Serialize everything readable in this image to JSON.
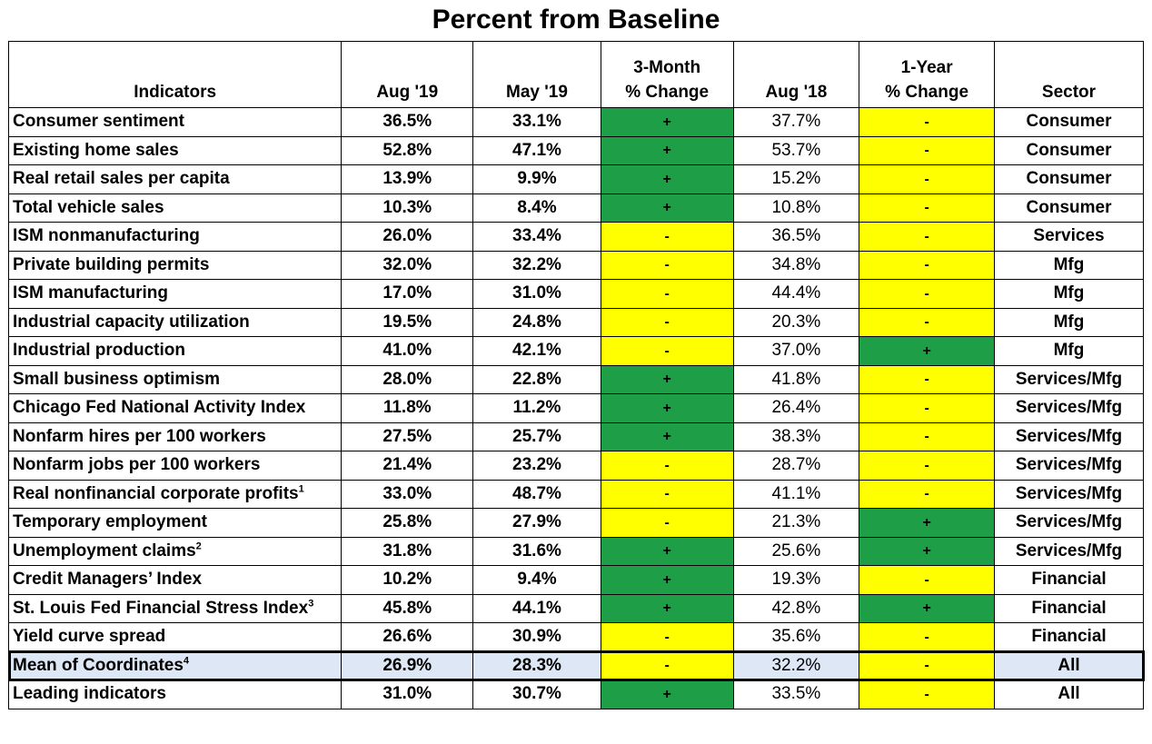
{
  "title": "Percent from Baseline",
  "headers": {
    "indicators": "Indicators",
    "aug19": "Aug '19",
    "may19": "May '19",
    "change3_line1": "3-Month",
    "change3_line2": "% Change",
    "aug18": "Aug '18",
    "change1_line1": "1-Year",
    "change1_line2": "% Change",
    "sector": "Sector"
  },
  "colors": {
    "positive": "#1e9e46",
    "negative": "#ffff00",
    "highlight_row": "#dde7f5"
  },
  "rows": [
    {
      "name": "Consumer sentiment",
      "sup": "",
      "aug19": "36.5%",
      "may19": "33.1%",
      "m3": "+",
      "aug18": "37.7%",
      "y1": "-",
      "sector": "Consumer"
    },
    {
      "name": "Existing home sales",
      "sup": "",
      "aug19": "52.8%",
      "may19": "47.1%",
      "m3": "+",
      "aug18": "53.7%",
      "y1": "-",
      "sector": "Consumer"
    },
    {
      "name": "Real retail sales per capita",
      "sup": "",
      "aug19": "13.9%",
      "may19": "9.9%",
      "m3": "+",
      "aug18": "15.2%",
      "y1": "-",
      "sector": "Consumer"
    },
    {
      "name": "Total vehicle sales",
      "sup": "",
      "aug19": "10.3%",
      "may19": "8.4%",
      "m3": "+",
      "aug18": "10.8%",
      "y1": "-",
      "sector": "Consumer"
    },
    {
      "name": "ISM nonmanufacturing",
      "sup": "",
      "aug19": "26.0%",
      "may19": "33.4%",
      "m3": "-",
      "aug18": "36.5%",
      "y1": "-",
      "sector": "Services"
    },
    {
      "name": "Private building permits",
      "sup": "",
      "aug19": "32.0%",
      "may19": "32.2%",
      "m3": "-",
      "aug18": "34.8%",
      "y1": "-",
      "sector": "Mfg"
    },
    {
      "name": "ISM manufacturing",
      "sup": "",
      "aug19": "17.0%",
      "may19": "31.0%",
      "m3": "-",
      "aug18": "44.4%",
      "y1": "-",
      "sector": "Mfg"
    },
    {
      "name": "Industrial capacity utilization",
      "sup": "",
      "aug19": "19.5%",
      "may19": "24.8%",
      "m3": "-",
      "aug18": "20.3%",
      "y1": "-",
      "sector": "Mfg"
    },
    {
      "name": "Industrial production",
      "sup": "",
      "aug19": "41.0%",
      "may19": "42.1%",
      "m3": "-",
      "aug18": "37.0%",
      "y1": "+",
      "sector": "Mfg"
    },
    {
      "name": "Small business optimism",
      "sup": "",
      "aug19": "28.0%",
      "may19": "22.8%",
      "m3": "+",
      "aug18": "41.8%",
      "y1": "-",
      "sector": "Services/Mfg"
    },
    {
      "name": "Chicago Fed National Activity Index",
      "sup": "",
      "aug19": "11.8%",
      "may19": "11.2%",
      "m3": "+",
      "aug18": "26.4%",
      "y1": "-",
      "sector": "Services/Mfg"
    },
    {
      "name": "Nonfarm hires per 100 workers",
      "sup": "",
      "aug19": "27.5%",
      "may19": "25.7%",
      "m3": "+",
      "aug18": "38.3%",
      "y1": "-",
      "sector": "Services/Mfg"
    },
    {
      "name": "Nonfarm jobs per 100 workers",
      "sup": "",
      "aug19": "21.4%",
      "may19": "23.2%",
      "m3": "-",
      "aug18": "28.7%",
      "y1": "-",
      "sector": "Services/Mfg"
    },
    {
      "name": "Real nonfinancial corporate profits",
      "sup": "1",
      "aug19": "33.0%",
      "may19": "48.7%",
      "m3": "-",
      "aug18": "41.1%",
      "y1": "-",
      "sector": "Services/Mfg"
    },
    {
      "name": "Temporary employment",
      "sup": "",
      "aug19": "25.8%",
      "may19": "27.9%",
      "m3": "-",
      "aug18": "21.3%",
      "y1": "+",
      "sector": "Services/Mfg"
    },
    {
      "name": "Unemployment claims",
      "sup": "2",
      "aug19": "31.8%",
      "may19": "31.6%",
      "m3": "+",
      "aug18": "25.6%",
      "y1": "+",
      "sector": "Services/Mfg"
    },
    {
      "name": "Credit Managers’ Index",
      "sup": "",
      "aug19": "10.2%",
      "may19": "9.4%",
      "m3": "+",
      "aug18": "19.3%",
      "y1": "-",
      "sector": "Financial"
    },
    {
      "name": "St. Louis Fed Financial Stress Index",
      "sup": "3",
      "aug19": "45.8%",
      "may19": "44.1%",
      "m3": "+",
      "aug18": "42.8%",
      "y1": "+",
      "sector": "Financial"
    },
    {
      "name": "Yield curve spread",
      "sup": "",
      "aug19": "26.6%",
      "may19": "30.9%",
      "m3": "-",
      "aug18": "35.6%",
      "y1": "-",
      "sector": "Financial"
    },
    {
      "name": "Mean of Coordinates",
      "sup": "4",
      "aug19": "26.9%",
      "may19": "28.3%",
      "m3": "-",
      "aug18": "32.2%",
      "y1": "-",
      "sector": "All",
      "highlight": true
    },
    {
      "name": "Leading indicators",
      "sup": "",
      "aug19": "31.0%",
      "may19": "30.7%",
      "m3": "+",
      "aug18": "33.5%",
      "y1": "-",
      "sector": "All"
    }
  ]
}
